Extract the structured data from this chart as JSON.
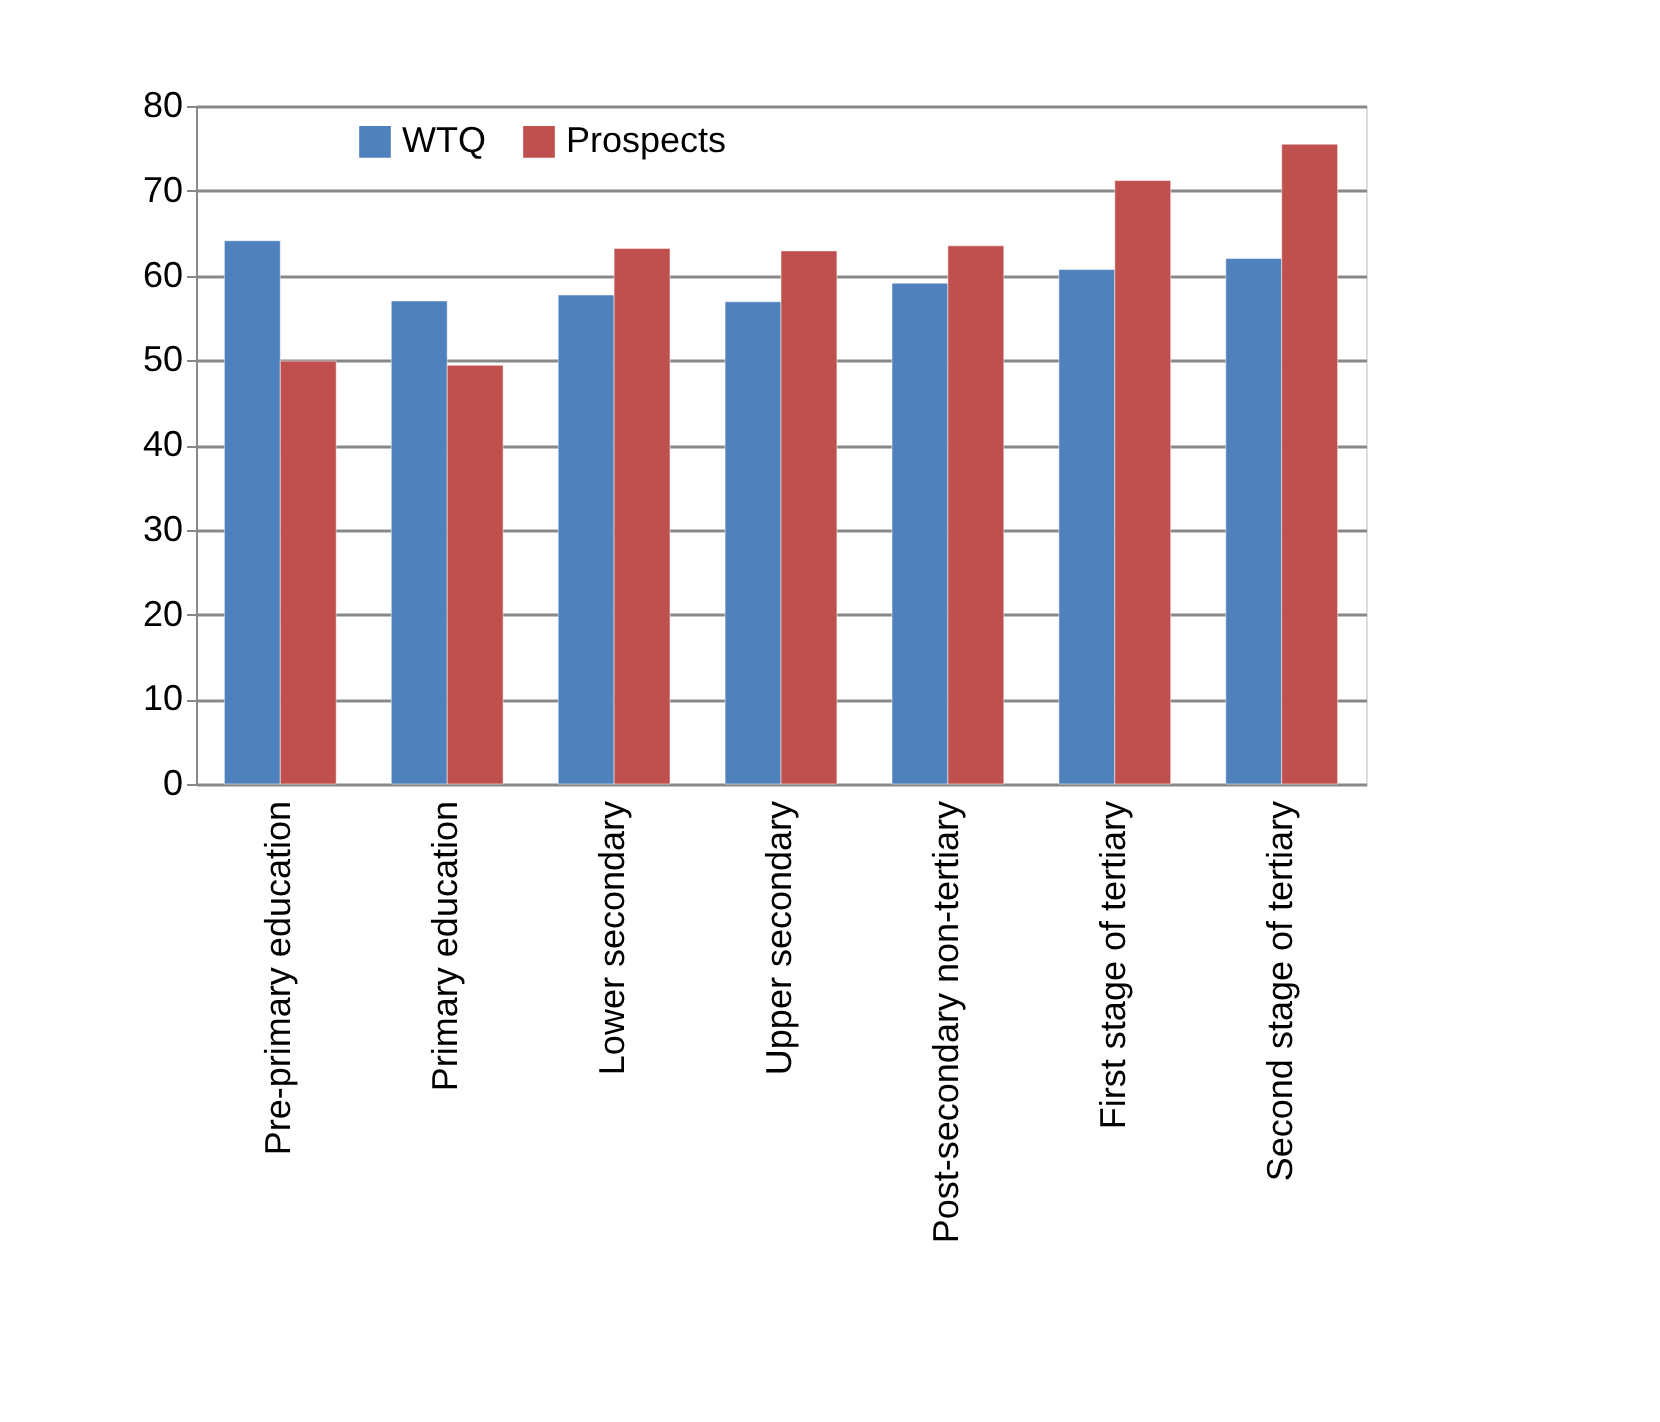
{
  "chart_data": {
    "type": "bar",
    "categories": [
      "Pre-primary education",
      "Primary education",
      "Lower secondary",
      "Upper secondary",
      "Post-secondary non-tertiary",
      "First stage of tertiary",
      "Second stage of tertiary"
    ],
    "series": [
      {
        "name": "WTQ",
        "color": "#4f81bd",
        "values": [
          64.1,
          57.0,
          57.7,
          56.9,
          59.1,
          60.7,
          62.0
        ]
      },
      {
        "name": "Prospects",
        "color": "#c0504d",
        "values": [
          49.9,
          49.4,
          63.2,
          62.9,
          63.5,
          71.2,
          75.5
        ]
      }
    ],
    "ylim": [
      0,
      80
    ],
    "yticks": [
      0,
      10,
      20,
      30,
      40,
      50,
      60,
      70,
      80
    ],
    "grid": "y",
    "legend": "top left"
  }
}
